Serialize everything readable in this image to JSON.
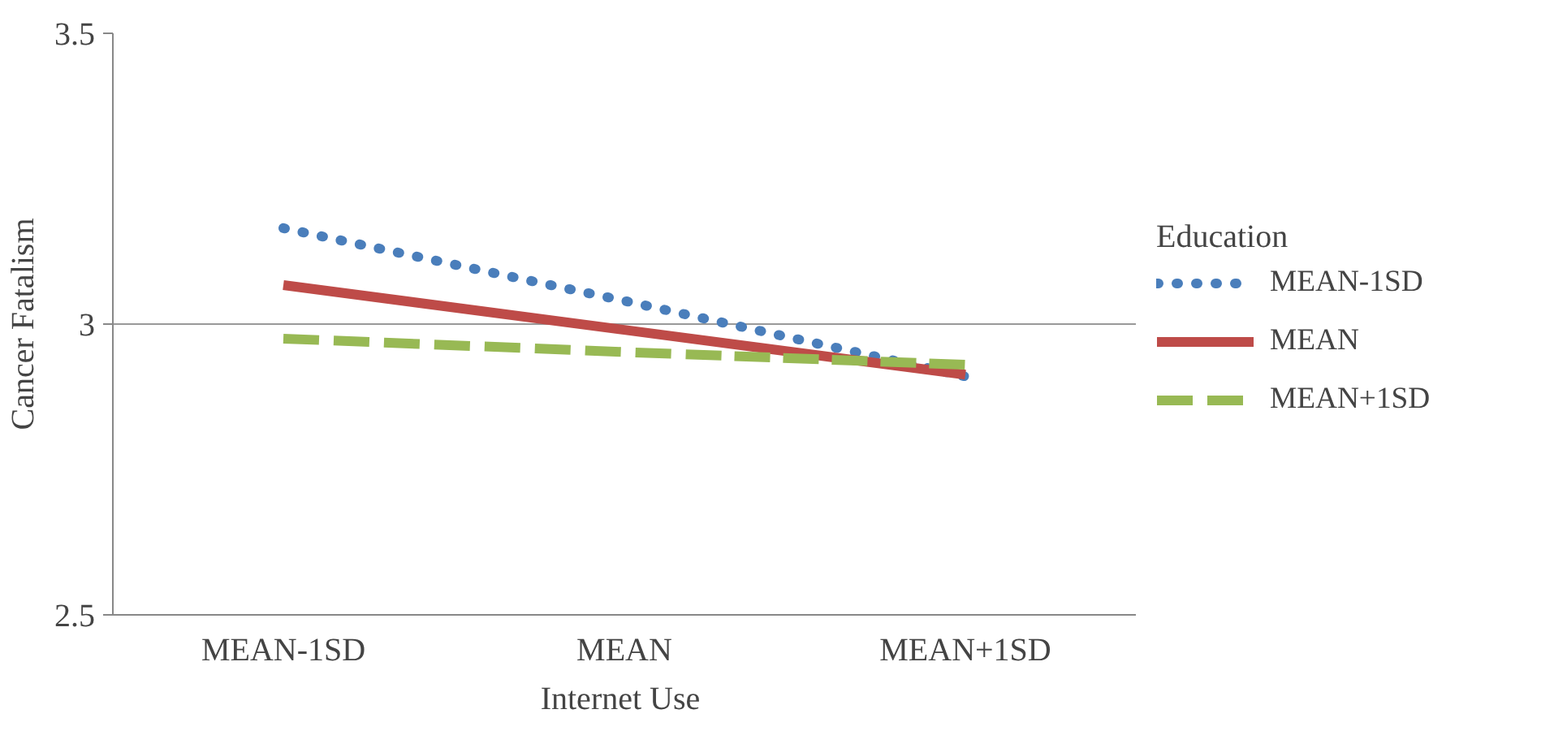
{
  "chart_data": {
    "type": "line",
    "xlabel": "Internet  Use",
    "ylabel": "Cancer Fatalism",
    "legend_title": "Education",
    "categories": [
      "MEAN-1SD",
      "MEAN",
      "MEAN+1SD"
    ],
    "series": [
      {
        "name": "MEAN-1SD",
        "color": "#4a7ebb",
        "values": [
          3.165,
          3.04,
          2.91
        ],
        "line_style": "dotted"
      },
      {
        "name": "MEAN",
        "color": "#be4b48",
        "values": [
          3.067,
          2.99,
          2.913
        ],
        "line_style": "solid"
      },
      {
        "name": "MEAN+1SD",
        "color": "#98b954",
        "values": [
          2.975,
          2.952,
          2.93
        ],
        "line_style": "dashed"
      }
    ],
    "ylim": [
      2.5,
      3.5
    ],
    "yticks": [
      2.5,
      3,
      3.5
    ],
    "grid": "y",
    "legend": "right",
    "marker": "none"
  }
}
